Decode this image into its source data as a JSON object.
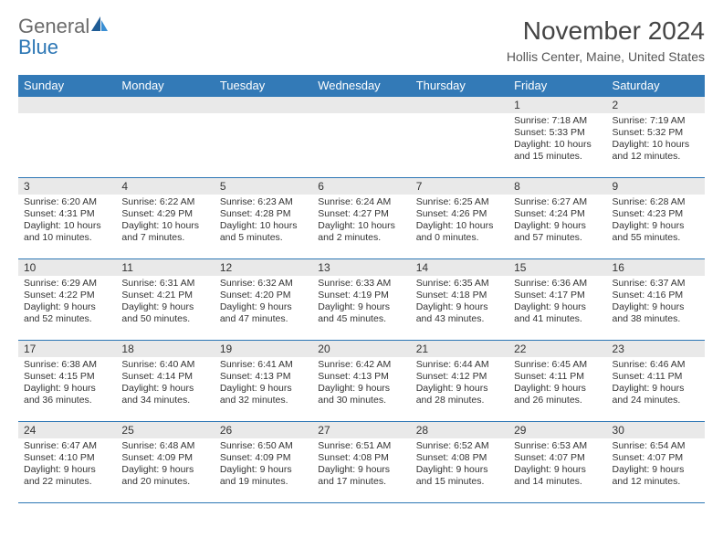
{
  "brand": {
    "general": "General",
    "blue": "Blue"
  },
  "title": "November 2024",
  "location": "Hollis Center, Maine, United States",
  "colors": {
    "header_bg": "#337ab7",
    "header_text": "#ffffff",
    "rule": "#2d77b5",
    "daynum_bg": "#e9e9e9",
    "text": "#333333",
    "logo_gray": "#6b6b6b",
    "logo_blue": "#2d77b5",
    "background": "#ffffff"
  },
  "typography": {
    "title_fontsize": 28,
    "location_fontsize": 14,
    "dow_fontsize": 13,
    "daynum_fontsize": 12,
    "body_fontsize": 10.5
  },
  "days_of_week": [
    "Sunday",
    "Monday",
    "Tuesday",
    "Wednesday",
    "Thursday",
    "Friday",
    "Saturday"
  ],
  "weeks": [
    [
      {
        "empty": true
      },
      {
        "empty": true
      },
      {
        "empty": true
      },
      {
        "empty": true
      },
      {
        "empty": true
      },
      {
        "n": "1",
        "sunrise": "Sunrise: 7:18 AM",
        "sunset": "Sunset: 5:33 PM",
        "daylight": "Daylight: 10 hours and 15 minutes."
      },
      {
        "n": "2",
        "sunrise": "Sunrise: 7:19 AM",
        "sunset": "Sunset: 5:32 PM",
        "daylight": "Daylight: 10 hours and 12 minutes."
      }
    ],
    [
      {
        "n": "3",
        "sunrise": "Sunrise: 6:20 AM",
        "sunset": "Sunset: 4:31 PM",
        "daylight": "Daylight: 10 hours and 10 minutes."
      },
      {
        "n": "4",
        "sunrise": "Sunrise: 6:22 AM",
        "sunset": "Sunset: 4:29 PM",
        "daylight": "Daylight: 10 hours and 7 minutes."
      },
      {
        "n": "5",
        "sunrise": "Sunrise: 6:23 AM",
        "sunset": "Sunset: 4:28 PM",
        "daylight": "Daylight: 10 hours and 5 minutes."
      },
      {
        "n": "6",
        "sunrise": "Sunrise: 6:24 AM",
        "sunset": "Sunset: 4:27 PM",
        "daylight": "Daylight: 10 hours and 2 minutes."
      },
      {
        "n": "7",
        "sunrise": "Sunrise: 6:25 AM",
        "sunset": "Sunset: 4:26 PM",
        "daylight": "Daylight: 10 hours and 0 minutes."
      },
      {
        "n": "8",
        "sunrise": "Sunrise: 6:27 AM",
        "sunset": "Sunset: 4:24 PM",
        "daylight": "Daylight: 9 hours and 57 minutes."
      },
      {
        "n": "9",
        "sunrise": "Sunrise: 6:28 AM",
        "sunset": "Sunset: 4:23 PM",
        "daylight": "Daylight: 9 hours and 55 minutes."
      }
    ],
    [
      {
        "n": "10",
        "sunrise": "Sunrise: 6:29 AM",
        "sunset": "Sunset: 4:22 PM",
        "daylight": "Daylight: 9 hours and 52 minutes."
      },
      {
        "n": "11",
        "sunrise": "Sunrise: 6:31 AM",
        "sunset": "Sunset: 4:21 PM",
        "daylight": "Daylight: 9 hours and 50 minutes."
      },
      {
        "n": "12",
        "sunrise": "Sunrise: 6:32 AM",
        "sunset": "Sunset: 4:20 PM",
        "daylight": "Daylight: 9 hours and 47 minutes."
      },
      {
        "n": "13",
        "sunrise": "Sunrise: 6:33 AM",
        "sunset": "Sunset: 4:19 PM",
        "daylight": "Daylight: 9 hours and 45 minutes."
      },
      {
        "n": "14",
        "sunrise": "Sunrise: 6:35 AM",
        "sunset": "Sunset: 4:18 PM",
        "daylight": "Daylight: 9 hours and 43 minutes."
      },
      {
        "n": "15",
        "sunrise": "Sunrise: 6:36 AM",
        "sunset": "Sunset: 4:17 PM",
        "daylight": "Daylight: 9 hours and 41 minutes."
      },
      {
        "n": "16",
        "sunrise": "Sunrise: 6:37 AM",
        "sunset": "Sunset: 4:16 PM",
        "daylight": "Daylight: 9 hours and 38 minutes."
      }
    ],
    [
      {
        "n": "17",
        "sunrise": "Sunrise: 6:38 AM",
        "sunset": "Sunset: 4:15 PM",
        "daylight": "Daylight: 9 hours and 36 minutes."
      },
      {
        "n": "18",
        "sunrise": "Sunrise: 6:40 AM",
        "sunset": "Sunset: 4:14 PM",
        "daylight": "Daylight: 9 hours and 34 minutes."
      },
      {
        "n": "19",
        "sunrise": "Sunrise: 6:41 AM",
        "sunset": "Sunset: 4:13 PM",
        "daylight": "Daylight: 9 hours and 32 minutes."
      },
      {
        "n": "20",
        "sunrise": "Sunrise: 6:42 AM",
        "sunset": "Sunset: 4:13 PM",
        "daylight": "Daylight: 9 hours and 30 minutes."
      },
      {
        "n": "21",
        "sunrise": "Sunrise: 6:44 AM",
        "sunset": "Sunset: 4:12 PM",
        "daylight": "Daylight: 9 hours and 28 minutes."
      },
      {
        "n": "22",
        "sunrise": "Sunrise: 6:45 AM",
        "sunset": "Sunset: 4:11 PM",
        "daylight": "Daylight: 9 hours and 26 minutes."
      },
      {
        "n": "23",
        "sunrise": "Sunrise: 6:46 AM",
        "sunset": "Sunset: 4:11 PM",
        "daylight": "Daylight: 9 hours and 24 minutes."
      }
    ],
    [
      {
        "n": "24",
        "sunrise": "Sunrise: 6:47 AM",
        "sunset": "Sunset: 4:10 PM",
        "daylight": "Daylight: 9 hours and 22 minutes."
      },
      {
        "n": "25",
        "sunrise": "Sunrise: 6:48 AM",
        "sunset": "Sunset: 4:09 PM",
        "daylight": "Daylight: 9 hours and 20 minutes."
      },
      {
        "n": "26",
        "sunrise": "Sunrise: 6:50 AM",
        "sunset": "Sunset: 4:09 PM",
        "daylight": "Daylight: 9 hours and 19 minutes."
      },
      {
        "n": "27",
        "sunrise": "Sunrise: 6:51 AM",
        "sunset": "Sunset: 4:08 PM",
        "daylight": "Daylight: 9 hours and 17 minutes."
      },
      {
        "n": "28",
        "sunrise": "Sunrise: 6:52 AM",
        "sunset": "Sunset: 4:08 PM",
        "daylight": "Daylight: 9 hours and 15 minutes."
      },
      {
        "n": "29",
        "sunrise": "Sunrise: 6:53 AM",
        "sunset": "Sunset: 4:07 PM",
        "daylight": "Daylight: 9 hours and 14 minutes."
      },
      {
        "n": "30",
        "sunrise": "Sunrise: 6:54 AM",
        "sunset": "Sunset: 4:07 PM",
        "daylight": "Daylight: 9 hours and 12 minutes."
      }
    ]
  ]
}
